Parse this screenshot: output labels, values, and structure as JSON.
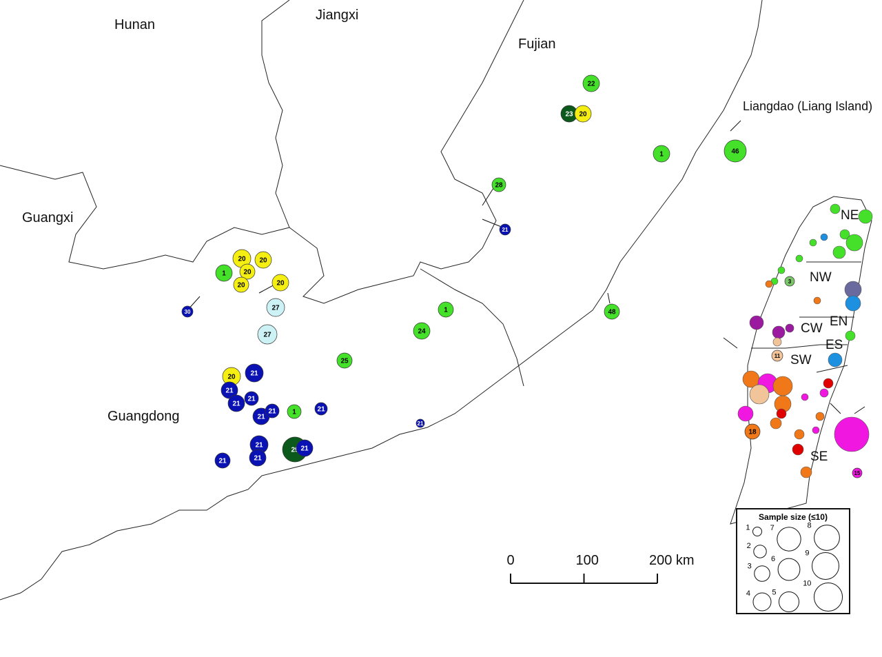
{
  "regions": [
    "Hunan",
    "Jiangxi",
    "Fujian",
    "Guangxi",
    "Guangdong"
  ],
  "island_label": "Liangdao (Liang Island)",
  "taiwan_regions": [
    "NE",
    "NW",
    "CW",
    "EN",
    "ES",
    "SW",
    "SE"
  ],
  "scale_bar": {
    "ticks": [
      0,
      100,
      {
        "value": 200,
        "label": "200 km"
      }
    ]
  },
  "legend": {
    "title": "Sample size (≤10)",
    "sizes": [
      1,
      2,
      3,
      4,
      5,
      6,
      7,
      8,
      9,
      10
    ]
  },
  "sites": [
    {
      "label": "22",
      "color": "#44e02a"
    },
    {
      "label": "23",
      "color": "#0b5a1c"
    },
    {
      "label": "20",
      "color": "#f5ee12"
    },
    {
      "label": "1",
      "color": "#44e02a"
    },
    {
      "label": "46",
      "color": "#44e02a"
    },
    {
      "label": "48",
      "color": "#44e02a"
    },
    {
      "label": "1",
      "color": "#44e02a"
    },
    {
      "label": "20",
      "color": "#f5ee12"
    },
    {
      "label": "20",
      "color": "#f5ee12"
    },
    {
      "label": "20",
      "color": "#f5ee12"
    },
    {
      "label": "20",
      "color": "#f5ee12"
    },
    {
      "label": "20",
      "color": "#f5ee12"
    },
    {
      "label": "27",
      "color": "#ccf2f6"
    },
    {
      "label": "27",
      "color": "#ccf2f6"
    },
    {
      "label": "1",
      "color": "#44e02a"
    },
    {
      "label": "24",
      "color": "#44e02a"
    },
    {
      "label": "25",
      "color": "#44e02a"
    },
    {
      "label": "20",
      "color": "#f5ee12"
    },
    {
      "label": "21",
      "color": "#0b12b4"
    },
    {
      "label": "21",
      "color": "#0b12b4"
    },
    {
      "label": "21",
      "color": "#0b12b4"
    },
    {
      "label": "21",
      "color": "#0b12b4"
    },
    {
      "label": "21",
      "color": "#0b12b4"
    },
    {
      "label": "21",
      "color": "#0b12b4"
    },
    {
      "label": "1",
      "color": "#44e02a"
    },
    {
      "label": "21",
      "color": "#0b12b4"
    },
    {
      "label": "21",
      "color": "#0b12b4"
    },
    {
      "label": "21",
      "color": "#0b12b4"
    },
    {
      "label": "29",
      "color": "#0b5a1c"
    },
    {
      "label": "21",
      "color": "#0b12b4"
    },
    {
      "label": "21",
      "color": "#0b12b4"
    },
    {
      "label": "21",
      "color": "#0b12b4"
    },
    {
      "label": "28",
      "color": "#44e02a"
    },
    {
      "label": "21",
      "color": "#0b12b4"
    },
    {
      "label": "30",
      "color": "#0b12b4"
    },
    {
      "label": "11",
      "color": "#f2c49a"
    },
    {
      "label": "3",
      "color": "#7cc66a"
    },
    {
      "label": "18",
      "color": "#f07818"
    },
    {
      "label": "15",
      "color": "#f018e0"
    }
  ]
}
